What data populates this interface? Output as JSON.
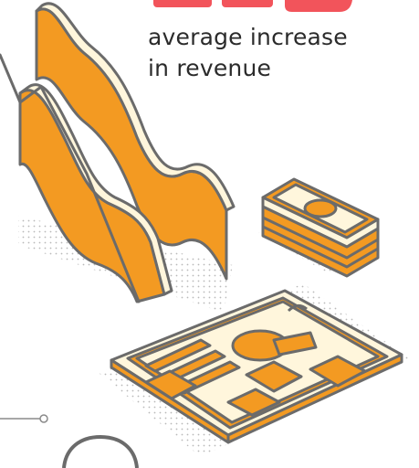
{
  "stat": {
    "caption_line1": "average increase",
    "caption_line2": "in revenue"
  },
  "colors": {
    "orange": "#f39a22",
    "cream": "#fff6dc",
    "outline": "#6b6b6b",
    "accent_red": "#f2545b",
    "dots": "#b9b9b9",
    "text": "#2b2b2b"
  }
}
